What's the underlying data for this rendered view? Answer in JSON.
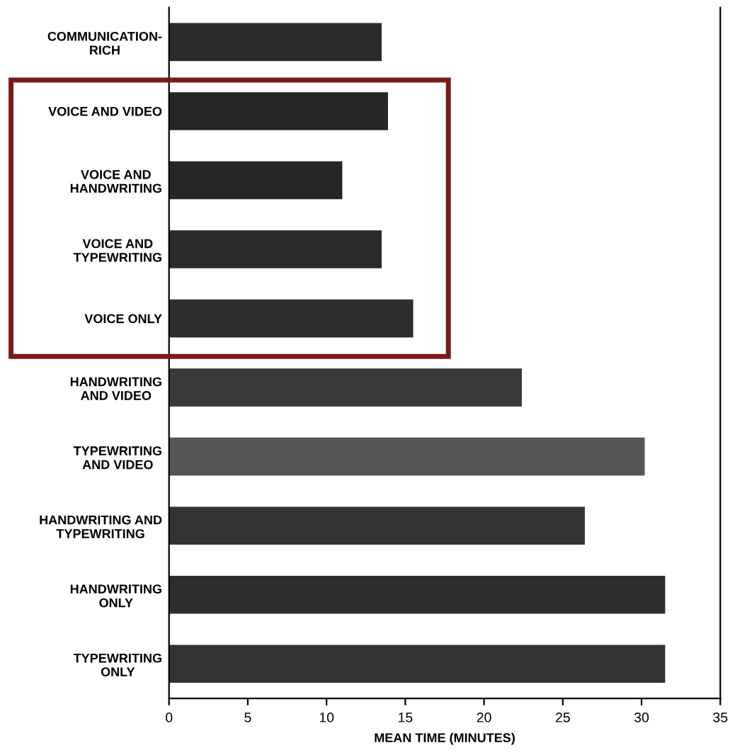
{
  "chart_data": {
    "type": "bar",
    "orientation": "horizontal",
    "xlabel": "MEAN TIME (MINUTES)",
    "categories": [
      "COMMUNICATION-\nRICH",
      "VOICE AND VIDEO",
      "VOICE AND\nHANDWRITING",
      "VOICE AND\nTYPEWRITING",
      "VOICE ONLY",
      "HANDWRITING\nAND VIDEO",
      "TYPEWRITING\nAND VIDEO",
      "HANDWRITING AND\nTYPEWRITING",
      "HANDWRITING\nONLY",
      "TYPEWRITING\nONLY"
    ],
    "values": [
      13.5,
      13.9,
      11.0,
      13.5,
      15.5,
      22.4,
      30.2,
      26.4,
      31.5,
      31.5
    ],
    "colors": [
      "#2b2b2b",
      "#262626",
      "#262626",
      "#2b2b2b",
      "#2e2e2e",
      "#3a3a3a",
      "#555555",
      "#333333",
      "#2e2e2e",
      "#333333"
    ],
    "xlim": [
      0,
      35
    ],
    "xticks": [
      0,
      5,
      10,
      15,
      20,
      25,
      30,
      35
    ],
    "grid": false,
    "legend": false
  }
}
